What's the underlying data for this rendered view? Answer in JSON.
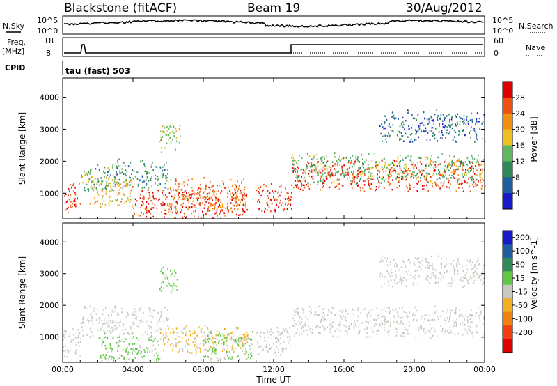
{
  "header": {
    "station": "Blackstone (fitACF)",
    "beam": "Beam 19",
    "date": "30/Aug/2012"
  },
  "status_panels": {
    "nsky_label": "N.Sky",
    "nsky_ticks": [
      "10^5",
      "10^0"
    ],
    "nsearch_label": "N.Search",
    "nsearch_ticks": [
      "10^5",
      "10^0"
    ],
    "freq_label": "Freq.",
    "freq_unit": "[MHz]",
    "freq_ticks": [
      "18",
      "8"
    ],
    "nave_label": "Nave",
    "nave_ticks": [
      "60",
      "0"
    ],
    "cpid_label": "CPID",
    "cpid_value": "tau (fast) 503"
  },
  "colors": {
    "power_scale": [
      "#1a1acd",
      "#1f5fa0",
      "#2e8b57",
      "#5fb85f",
      "#f0c020",
      "#f09010",
      "#f05010",
      "#e00000"
    ],
    "velocity_scale": [
      "#1a1acd",
      "#1f5fa0",
      "#2e8b57",
      "#5fc840",
      "#c8c8c0",
      "#f0b020",
      "#f08010",
      "#f04010",
      "#e00000"
    ]
  },
  "chart_data": [
    {
      "type": "heatmap",
      "panel": "power",
      "ylabel": "Slant Range [km]",
      "yticks": [
        "1000",
        "2000",
        "3000",
        "4000"
      ],
      "ylim": [
        200,
        4600
      ],
      "colorbar_label": "Power [dB]",
      "colorbar_ticks": [
        "4",
        "8",
        "12",
        "16",
        "20",
        "24",
        "28"
      ],
      "features": [
        {
          "t0": 0.0,
          "t1": 1.0,
          "range": 900,
          "level": 28
        },
        {
          "t0": 1.0,
          "t1": 3.0,
          "range": 1450,
          "level": 12
        },
        {
          "t0": 3.0,
          "t1": 6.0,
          "range": 1600,
          "level": 10
        },
        {
          "t0": 1.5,
          "t1": 4.0,
          "range": 1050,
          "level": 20
        },
        {
          "t0": 4.0,
          "t1": 10.5,
          "range": 700,
          "level": 28
        },
        {
          "t0": 6.0,
          "t1": 10.5,
          "range": 1000,
          "level": 24
        },
        {
          "t0": 5.5,
          "t1": 6.7,
          "range": 2800,
          "level": 16
        },
        {
          "t0": 11.0,
          "t1": 13.0,
          "range": 850,
          "level": 28
        },
        {
          "t0": 13.0,
          "t1": 24.0,
          "range": 1550,
          "level": 28
        },
        {
          "t0": 13.0,
          "t1": 24.0,
          "range": 1800,
          "level": 14
        },
        {
          "t0": 18.0,
          "t1": 24.0,
          "range": 3100,
          "level": 6
        }
      ]
    },
    {
      "type": "heatmap",
      "panel": "velocity",
      "ylabel": "Slant Range [km]",
      "yticks": [
        "1000",
        "2000",
        "3000",
        "4000"
      ],
      "ylim": [
        200,
        4600
      ],
      "colorbar_label": "Velocity [m s^-1]",
      "colorbar_ticks": [
        "200",
        "100",
        "50",
        "15",
        "-15",
        "-50",
        "-100",
        "-200"
      ],
      "xlabel": "Time UT",
      "xticks": [
        "00:00",
        "04:00",
        "08:00",
        "12:00",
        "16:00",
        "20:00",
        "00:00"
      ],
      "xlim": [
        0,
        24
      ],
      "features": [
        {
          "t0": 0.0,
          "t1": 1.0,
          "range": 850,
          "level": 0
        },
        {
          "t0": 1.0,
          "t1": 6.0,
          "range": 1500,
          "level": 0
        },
        {
          "t0": 2.0,
          "t1": 5.5,
          "range": 650,
          "level": 40
        },
        {
          "t0": 5.5,
          "t1": 10.5,
          "range": 900,
          "level": -40
        },
        {
          "t0": 8.0,
          "t1": 10.8,
          "range": 700,
          "level": 40
        },
        {
          "t0": 5.5,
          "t1": 6.5,
          "range": 2800,
          "level": 60
        },
        {
          "t0": 11.0,
          "t1": 13.0,
          "range": 900,
          "level": 0
        },
        {
          "t0": 13.0,
          "t1": 24.0,
          "range": 1500,
          "level": 0
        },
        {
          "t0": 18.0,
          "t1": 24.0,
          "range": 3100,
          "level": 0
        }
      ]
    }
  ]
}
